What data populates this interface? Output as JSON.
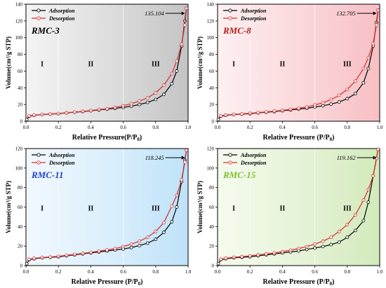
{
  "x_ticks": [
    "0.0",
    "0.2",
    "0.4",
    "0.6",
    "0.8",
    "1.0"
  ],
  "y_ticks": [
    "0",
    "20",
    "40",
    "60",
    "80",
    "100",
    "120",
    "140"
  ],
  "xlabel_main": "Relative Pressure (P/P",
  "xlabel_sub": "0",
  "xlabel_close": ")",
  "xlabel_main_alt": "Relative Pressure(P/P",
  "ylabel": "Volume(cm³/g STP)",
  "legend": [
    "Adsorption",
    "Desorption"
  ],
  "regions": [
    "I",
    "II",
    "III"
  ],
  "colors": {
    "adsorption": "#000000",
    "desorption": "#d62c2c"
  },
  "chart_data": [
    {
      "type": "line",
      "panel_label": "RMC-3",
      "label_color": "#000000",
      "background": "gray",
      "annotation": "135.104",
      "xlim": [
        0,
        1
      ],
      "ylim": [
        0,
        140
      ],
      "series": [
        {
          "name": "Adsorption",
          "x": [
            0.005,
            0.02,
            0.05,
            0.1,
            0.15,
            0.2,
            0.25,
            0.3,
            0.35,
            0.4,
            0.45,
            0.5,
            0.55,
            0.6,
            0.65,
            0.7,
            0.75,
            0.8,
            0.85,
            0.9,
            0.93,
            0.96,
            0.98,
            0.99
          ],
          "y": [
            2,
            6,
            7,
            8,
            8.5,
            9,
            10,
            10.8,
            11.5,
            12.5,
            13.5,
            14.5,
            15.5,
            16.5,
            18,
            20,
            22.5,
            26,
            32,
            45,
            60,
            90,
            120,
            135.104
          ]
        },
        {
          "name": "Desorption",
          "x": [
            0.99,
            0.98,
            0.96,
            0.93,
            0.9,
            0.85,
            0.8,
            0.75,
            0.7,
            0.65,
            0.6,
            0.55,
            0.5,
            0.45,
            0.4,
            0.35,
            0.3,
            0.25,
            0.2,
            0.15,
            0.1,
            0.05,
            0.02
          ],
          "y": [
            135.104,
            115,
            92,
            72,
            57,
            43,
            34,
            28,
            24,
            21,
            18.5,
            16.5,
            15,
            14,
            12.8,
            11.8,
            11,
            10.2,
            9.2,
            8.7,
            8.2,
            7.3,
            6.5
          ]
        }
      ]
    },
    {
      "type": "line",
      "panel_label": "RMC-8",
      "label_color": "#b71c1c",
      "background": "pink",
      "annotation": "132.705",
      "xlim": [
        0,
        1
      ],
      "ylim": [
        0,
        140
      ],
      "series": [
        {
          "name": "Adsorption",
          "x": [
            0.005,
            0.02,
            0.05,
            0.1,
            0.15,
            0.2,
            0.25,
            0.3,
            0.35,
            0.4,
            0.45,
            0.5,
            0.55,
            0.6,
            0.65,
            0.7,
            0.75,
            0.8,
            0.85,
            0.9,
            0.93,
            0.96,
            0.98,
            0.99
          ],
          "y": [
            2,
            6,
            7,
            8,
            8.5,
            9,
            10,
            10.8,
            11.5,
            12.5,
            13.5,
            14.5,
            15.5,
            17,
            18.5,
            20.5,
            23,
            27,
            33,
            46,
            63,
            90,
            118,
            132.705
          ]
        },
        {
          "name": "Desorption",
          "x": [
            0.99,
            0.98,
            0.96,
            0.93,
            0.9,
            0.85,
            0.8,
            0.75,
            0.7,
            0.65,
            0.6,
            0.55,
            0.5,
            0.45,
            0.4,
            0.35,
            0.3,
            0.25,
            0.2,
            0.15,
            0.1,
            0.05,
            0.02
          ],
          "y": [
            132.705,
            115,
            93,
            76,
            63,
            48,
            38,
            31,
            26,
            22,
            19.5,
            17,
            15.5,
            14.2,
            13,
            12,
            11.2,
            10.4,
            9.5,
            8.8,
            8.3,
            7.4,
            6.5
          ]
        }
      ]
    },
    {
      "type": "line",
      "panel_label": "RMC-11",
      "label_color": "#1f3fcf",
      "background": "blue",
      "annotation": "118.245",
      "xlim": [
        0,
        1
      ],
      "ylim": [
        0,
        120
      ],
      "series": [
        {
          "name": "Adsorption",
          "x": [
            0.005,
            0.02,
            0.05,
            0.1,
            0.15,
            0.2,
            0.25,
            0.3,
            0.35,
            0.4,
            0.45,
            0.5,
            0.55,
            0.6,
            0.65,
            0.7,
            0.75,
            0.8,
            0.85,
            0.9,
            0.93,
            0.96,
            0.98,
            0.99
          ],
          "y": [
            2,
            6,
            7,
            8,
            8.5,
            9,
            10,
            11,
            12,
            13,
            14,
            15,
            16,
            17,
            18.5,
            20.5,
            23,
            27,
            34,
            45,
            60,
            86,
            108,
            118.245
          ]
        },
        {
          "name": "Desorption",
          "x": [
            0.99,
            0.98,
            0.96,
            0.93,
            0.9,
            0.85,
            0.8,
            0.75,
            0.7,
            0.65,
            0.6,
            0.55,
            0.5,
            0.45,
            0.4,
            0.35,
            0.3,
            0.25,
            0.2,
            0.15,
            0.1,
            0.05,
            0.02
          ],
          "y": [
            118.245,
            106,
            88,
            72,
            61,
            44,
            35,
            29,
            25,
            22,
            19.5,
            17.5,
            16,
            14.8,
            13.5,
            12.5,
            11.5,
            10.5,
            9.5,
            8.8,
            8.3,
            7.4,
            6.5
          ]
        }
      ]
    },
    {
      "type": "line",
      "panel_label": "RMC-15",
      "label_color": "#7cbf2a",
      "background": "green",
      "annotation": "119.162",
      "xlim": [
        0,
        1
      ],
      "ylim": [
        0,
        120
      ],
      "series": [
        {
          "name": "Adsorption",
          "x": [
            0.005,
            0.02,
            0.05,
            0.1,
            0.15,
            0.2,
            0.25,
            0.3,
            0.35,
            0.4,
            0.45,
            0.5,
            0.55,
            0.6,
            0.65,
            0.7,
            0.75,
            0.8,
            0.85,
            0.9,
            0.93,
            0.96,
            0.98,
            0.99
          ],
          "y": [
            2,
            6,
            7,
            8,
            8.5,
            9,
            10,
            11,
            12,
            13,
            14,
            15,
            16.5,
            18,
            19.5,
            21.5,
            24,
            29,
            36,
            46,
            65,
            92,
            110,
            119.162
          ]
        },
        {
          "name": "Desorption",
          "x": [
            0.99,
            0.98,
            0.96,
            0.93,
            0.9,
            0.85,
            0.8,
            0.75,
            0.7,
            0.65,
            0.6,
            0.55,
            0.5,
            0.45,
            0.4,
            0.35,
            0.3,
            0.25,
            0.2,
            0.15,
            0.1,
            0.05,
            0.02
          ],
          "y": [
            119.162,
            110,
            92,
            78,
            67,
            52,
            42,
            35,
            29,
            25,
            22,
            19.5,
            17.5,
            15.8,
            14.3,
            13,
            12,
            11,
            10,
            9.2,
            8.5,
            7.5,
            6.5
          ]
        }
      ]
    }
  ]
}
